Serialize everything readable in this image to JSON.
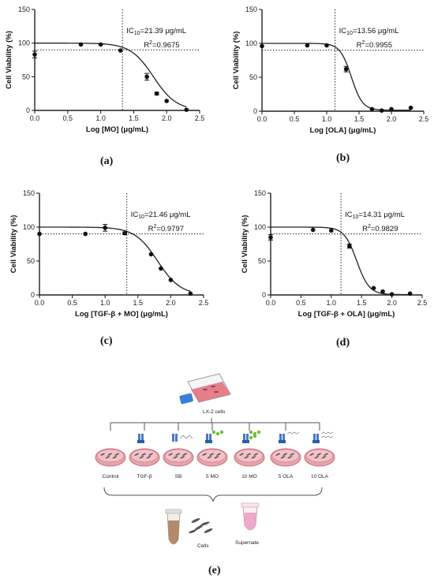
{
  "chart_data": [
    {
      "type": "line",
      "panel_label": "(a)",
      "xlabel": "Log [MO] (μg/mL)",
      "ylabel": "Cell Viability (%)",
      "xlim": [
        0,
        2.5
      ],
      "ylim": [
        0,
        150
      ],
      "xticks": [
        "0.0",
        "0.5",
        "1.0",
        "1.5",
        "2.0",
        "2.5"
      ],
      "yticks": [
        "0",
        "50",
        "100",
        "150"
      ],
      "ic_label": "IC",
      "ic_sub": "10",
      "ic_value": "=21.39 μg/mL",
      "r2_label": "R",
      "r2_sup": "2",
      "r2_value": "=0.9675",
      "log_ic10": 1.33,
      "threshold": 90,
      "points": [
        {
          "x": 0.0,
          "y": 83,
          "err": 5
        },
        {
          "x": 0.7,
          "y": 98,
          "err": 1
        },
        {
          "x": 1.0,
          "y": 98,
          "err": 1
        },
        {
          "x": 1.3,
          "y": 89,
          "err": 1
        },
        {
          "x": 1.7,
          "y": 50,
          "err": 5
        },
        {
          "x": 1.85,
          "y": 25,
          "err": 2
        },
        {
          "x": 2.0,
          "y": 14,
          "err": 1
        },
        {
          "x": 2.3,
          "y": 1,
          "err": 1
        }
      ],
      "fit": {
        "top": 100,
        "bottom": 0,
        "log_ic50": 1.8,
        "hill": 2.5
      }
    },
    {
      "type": "line",
      "panel_label": "(b)",
      "xlabel": "Log [OLA] (μg/mL)",
      "ylabel": "Cell Viability (%)",
      "xlim": [
        0,
        2.5
      ],
      "ylim": [
        0,
        150
      ],
      "xticks": [
        "0.0",
        "0.5",
        "1.0",
        "1.5",
        "2.0",
        "2.5"
      ],
      "yticks": [
        "0",
        "50",
        "100",
        "150"
      ],
      "ic_label": "IC",
      "ic_sub": "10",
      "ic_value": "=13.56 μg/mL",
      "r2_label": "R",
      "r2_sup": "2",
      "r2_value": "=0.9955",
      "log_ic10": 1.13,
      "threshold": 90,
      "points": [
        {
          "x": 0.0,
          "y": 96,
          "err": 1
        },
        {
          "x": 0.7,
          "y": 97,
          "err": 1
        },
        {
          "x": 1.0,
          "y": 97,
          "err": 1
        },
        {
          "x": 1.3,
          "y": 62,
          "err": 4
        },
        {
          "x": 1.7,
          "y": 3,
          "err": 1
        },
        {
          "x": 1.85,
          "y": 1,
          "err": 1
        },
        {
          "x": 2.0,
          "y": 3,
          "err": 1
        },
        {
          "x": 2.3,
          "y": 5,
          "err": 1
        }
      ],
      "fit": {
        "top": 100,
        "bottom": 1.5,
        "log_ic50": 1.38,
        "hill": 5
      }
    },
    {
      "type": "line",
      "panel_label": "(c)",
      "xlabel": "Log [TGF-β + MO] (μg/mL)",
      "ylabel": "Cell Viability (%)",
      "xlim": [
        0,
        2.5
      ],
      "ylim": [
        0,
        150
      ],
      "xticks": [
        "0.0",
        "0.5",
        "1.0",
        "1.5",
        "2.0",
        "2.5"
      ],
      "yticks": [
        "0",
        "50",
        "100",
        "150"
      ],
      "ic_label": "IC",
      "ic_sub": "10",
      "ic_value": "=21.46 μg/mL",
      "r2_label": "R",
      "r2_sup": "2",
      "r2_value": "=0.9797",
      "log_ic10": 1.33,
      "threshold": 90,
      "points": [
        {
          "x": 0.0,
          "y": 90,
          "err": 1
        },
        {
          "x": 0.7,
          "y": 90,
          "err": 1
        },
        {
          "x": 1.0,
          "y": 99,
          "err": 5
        },
        {
          "x": 1.3,
          "y": 91,
          "err": 2
        },
        {
          "x": 1.7,
          "y": 60,
          "err": 1
        },
        {
          "x": 1.85,
          "y": 39,
          "err": 1
        },
        {
          "x": 2.0,
          "y": 22,
          "err": 1
        },
        {
          "x": 2.3,
          "y": 2,
          "err": 1
        }
      ],
      "fit": {
        "top": 100,
        "bottom": 0,
        "log_ic50": 1.8,
        "hill": 2.5
      }
    },
    {
      "type": "line",
      "panel_label": "(d)",
      "xlabel": "Log [TGF-β + OLA] (μg/mL)",
      "ylabel": "Cell Viability (%)",
      "xlim": [
        0,
        2.5
      ],
      "ylim": [
        0,
        150
      ],
      "xticks": [
        "0.0",
        "0.5",
        "1.0",
        "1.5",
        "2.0",
        "2.5"
      ],
      "yticks": [
        "0",
        "50",
        "100",
        "150"
      ],
      "ic_label": "IC",
      "ic_sub": "10",
      "ic_value": "=14.31 μg/mL",
      "r2_label": "R",
      "r2_sup": "2",
      "r2_value": "=0.9829",
      "log_ic10": 1.16,
      "threshold": 90,
      "points": [
        {
          "x": 0.0,
          "y": 85,
          "err": 4
        },
        {
          "x": 0.7,
          "y": 96,
          "err": 1
        },
        {
          "x": 1.0,
          "y": 95,
          "err": 1
        },
        {
          "x": 1.3,
          "y": 72,
          "err": 3
        },
        {
          "x": 1.7,
          "y": 10,
          "err": 1
        },
        {
          "x": 1.85,
          "y": 5,
          "err": 1
        },
        {
          "x": 2.0,
          "y": 1,
          "err": 1
        },
        {
          "x": 2.3,
          "y": 2,
          "err": 1
        }
      ],
      "fit": {
        "top": 100,
        "bottom": 0.5,
        "log_ic50": 1.42,
        "hill": 4.2
      }
    }
  ],
  "schematic": {
    "panel_label": "(e)",
    "flask_label": "LX-2 cells",
    "groups": [
      "Control",
      "TGF-β",
      "SB",
      "5 MO",
      "10 MO",
      "5 OLA",
      "10 OLA"
    ],
    "cells_label": "Cells",
    "supernate_label": "Supernate",
    "colors": {
      "dish": "#e8a4ac",
      "dish_rim": "#c8707c",
      "mo": "#6cbf3a",
      "receptor": "#4a78c8",
      "flask_medium": "#e06a78",
      "cap": "#3a7fd8",
      "tube_pellet": "#b08a6a",
      "tube_pink": "#f0a8c8"
    }
  }
}
